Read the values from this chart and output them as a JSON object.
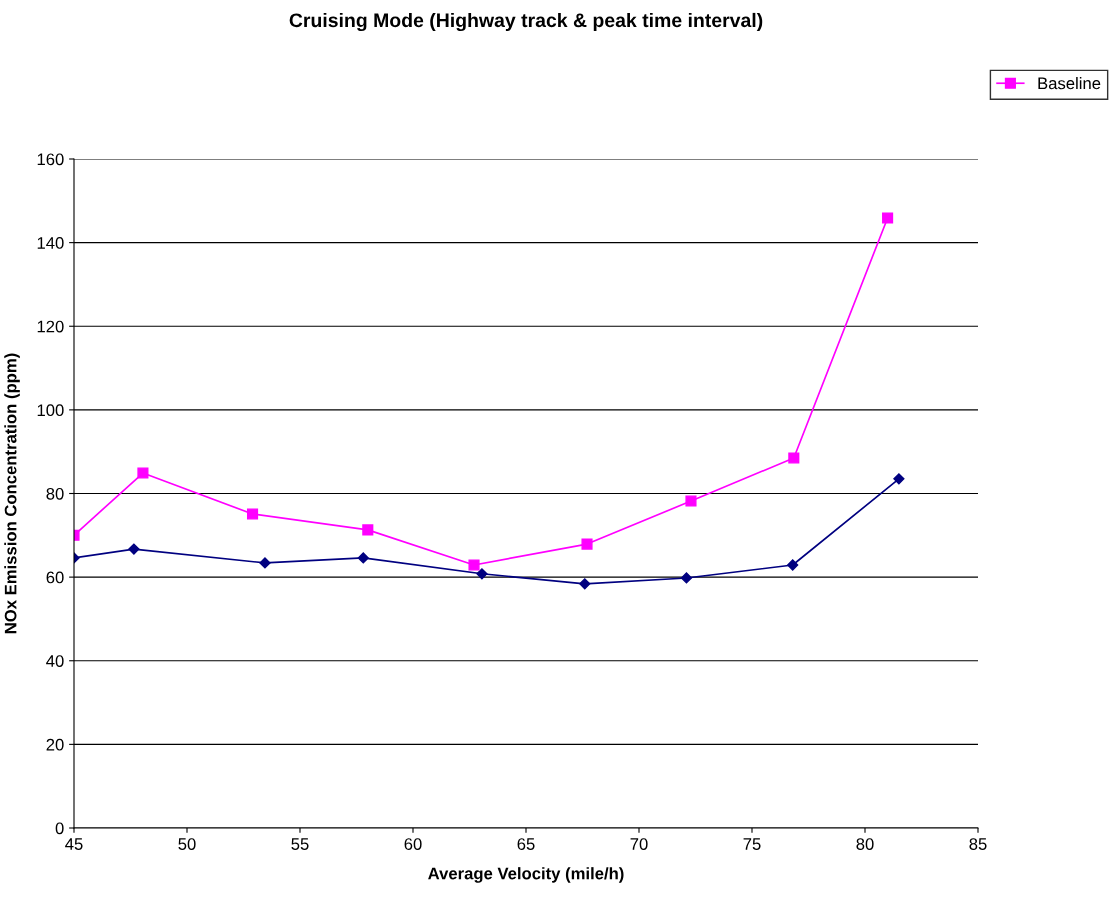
{
  "chart_data": {
    "type": "line",
    "title": "Cruising Mode (Highway track & peak time interval)",
    "xlabel": "Average Velocity (mile/h)",
    "ylabel": "NOx Emission Concentration (ppm)",
    "xlim": [
      45,
      85
    ],
    "xticks": [
      45,
      50,
      55,
      60,
      65,
      70,
      75,
      80,
      85
    ],
    "ylim": [
      0,
      160
    ],
    "yticks": [
      0,
      20,
      40,
      60,
      80,
      100,
      120,
      140,
      160
    ],
    "grid": "y",
    "legend": "top right",
    "series": [
      {
        "color": "#000080",
        "marker": "diamond",
        "x": [
          45,
          47.65,
          53.45,
          57.8,
          63.05,
          67.6,
          72.1,
          76.8,
          81.5
        ],
        "values": [
          64.6,
          66.7,
          63.4,
          64.6,
          60.8,
          58.4,
          59.8,
          62.9,
          83.5
        ]
      },
      {
        "name": "Baseline",
        "color": "#ff00ff",
        "marker": "square",
        "x": [
          45,
          48.05,
          52.9,
          58.0,
          62.7,
          67.7,
          72.3,
          76.85,
          81.0
        ],
        "values": [
          70,
          84.9,
          75.1,
          71.3,
          62.9,
          67.9,
          78.2,
          88.5,
          145.9
        ]
      }
    ]
  }
}
